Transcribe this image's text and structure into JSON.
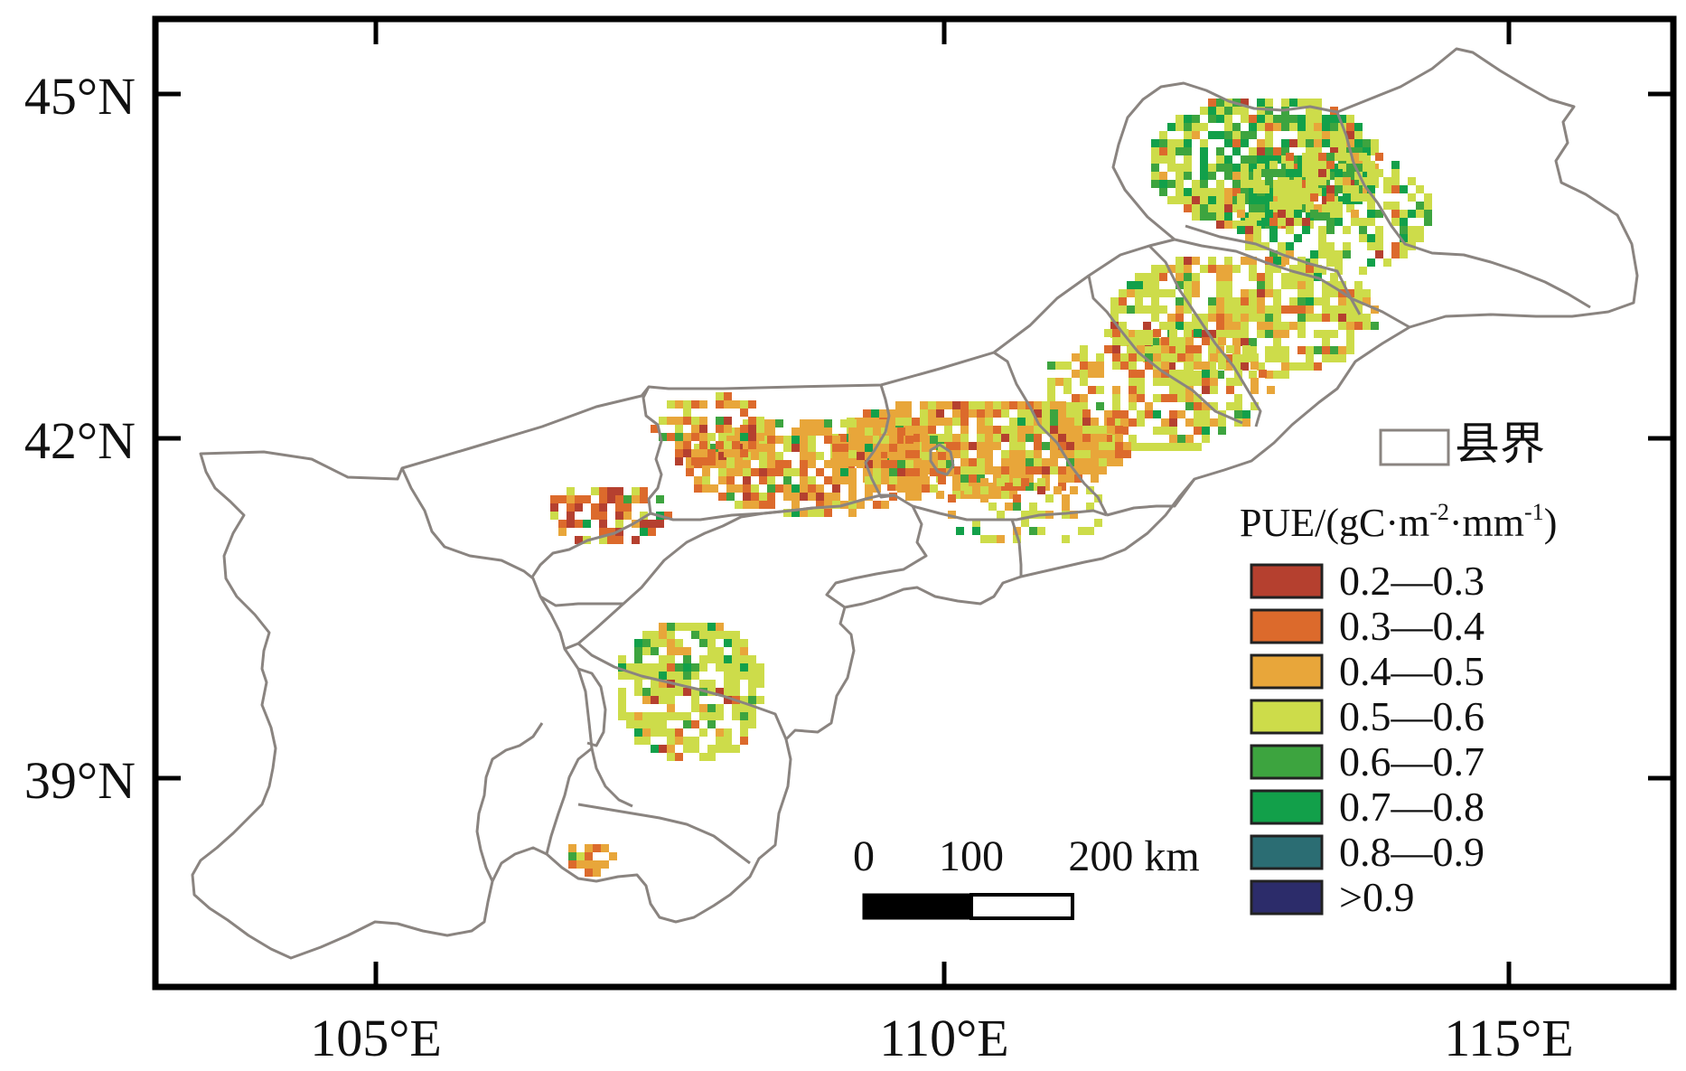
{
  "frame": {
    "lat_labels": [
      "45°N",
      "42°N",
      "39°N"
    ],
    "lon_labels": [
      "105°E",
      "110°E",
      "115°E"
    ]
  },
  "legend": {
    "boundary_label": "县界",
    "title_prefix": "PUE/(gC·m",
    "title_sup1": "-2",
    "title_mid": "·mm",
    "title_sup2": "-1",
    "title_suffix": ")",
    "classes": [
      {
        "label": "0.2—0.3",
        "color": "#b5402f"
      },
      {
        "label": "0.3—0.4",
        "color": "#dc6a2c"
      },
      {
        "label": "0.4—0.5",
        "color": "#e8a63a"
      },
      {
        "label": "0.5—0.6",
        "color": "#cddc4a"
      },
      {
        "label": "0.6—0.7",
        "color": "#3da43f"
      },
      {
        "label": "0.7—0.8",
        "color": "#12a04a"
      },
      {
        "label": "0.8—0.9",
        "color": "#2b6d73"
      },
      {
        "label": ">0.9",
        "color": "#2c2c6a"
      }
    ]
  },
  "scale_bar": {
    "labels": [
      "0",
      "100",
      "200 km"
    ]
  },
  "colors": {
    "boundary": "#8a8480",
    "frame": "#000000"
  }
}
